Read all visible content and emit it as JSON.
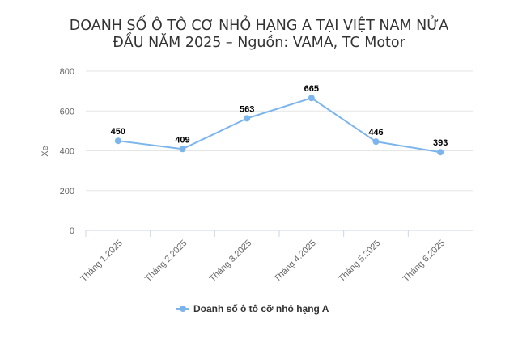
{
  "chart_data": {
    "type": "line",
    "title_lines": [
      "DOANH SỐ Ô TÔ CƠ NHỎ HẠNG A TẠI VIỆT NAM NỬA",
      "ĐẦU NĂM 2025 – Nguồn: VAMA, TC Motor"
    ],
    "ylabel": "Xe",
    "xlabel": "",
    "ylim": [
      0,
      800
    ],
    "yticks": [
      0,
      200,
      400,
      600,
      800
    ],
    "categories": [
      "Tháng 1.2025",
      "Tháng 2.2025",
      "Tháng 3.2025",
      "Tháng 4.2025",
      "Tháng 5.2025",
      "Tháng 6.2025"
    ],
    "series": [
      {
        "name": "Doanh số ô tô cỡ nhỏ hạng A",
        "values": [
          450,
          409,
          563,
          665,
          446,
          393
        ],
        "color": "#7cb5ec"
      }
    ],
    "grid": true,
    "legend_position": "bottom-center"
  }
}
